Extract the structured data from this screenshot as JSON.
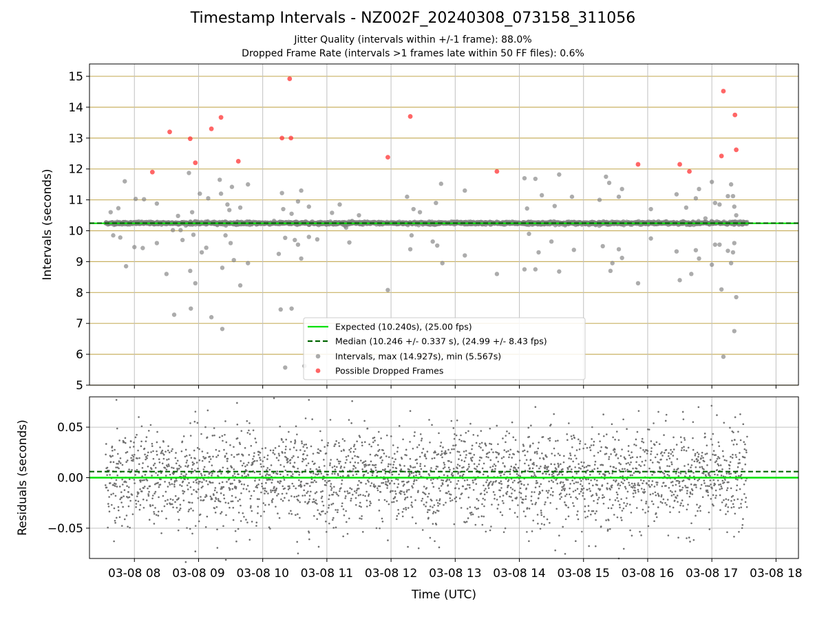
{
  "chart_data": [
    {
      "type": "scatter",
      "title": "Timestamp Intervals - NZ002F_20240308_073158_311056",
      "subtitle_lines": [
        "Jitter Quality (intervals within +/-1 frame): 88.0%",
        "Dropped Frame Rate (intervals >1 frames late within 50 FF files): 0.6%"
      ],
      "ylabel": "Intervals (seconds)",
      "ylim": [
        5,
        15.4
      ],
      "yticks": [
        5,
        6,
        7,
        8,
        9,
        10,
        11,
        12,
        13,
        14,
        15
      ],
      "xlim_hours": [
        7.3,
        18.35
      ],
      "grid": true,
      "legend_position": "lower center",
      "legend": [
        "Expected (10.240s), (25.00 fps)",
        "Median (10.246 +/- 0.337 s), (24.99 +/- 8.43 fps)",
        "Intervals, max (14.927s), min (5.567s)",
        "Possible Dropped Frames"
      ],
      "expected": 10.24,
      "median": 10.246,
      "colors": {
        "expected": "#00e000",
        "median": "#006400",
        "intervals": "#808080",
        "dropped": "#ff3333",
        "hgrid": "#c8b060",
        "vgrid": "#c0c0c0"
      },
      "time_range_hours": [
        7.55,
        17.55
      ],
      "dropped_points": [
        [
          8.28,
          11.9
        ],
        [
          8.55,
          13.2
        ],
        [
          8.87,
          12.98
        ],
        [
          8.95,
          12.2
        ],
        [
          9.2,
          13.3
        ],
        [
          9.35,
          13.67
        ],
        [
          9.62,
          12.25
        ],
        [
          10.3,
          13.0
        ],
        [
          10.42,
          14.92
        ],
        [
          10.44,
          13.0
        ],
        [
          11.95,
          12.38
        ],
        [
          12.3,
          13.7
        ],
        [
          13.65,
          11.92
        ],
        [
          15.85,
          12.15
        ],
        [
          16.5,
          12.15
        ],
        [
          16.65,
          11.92
        ],
        [
          17.15,
          12.42
        ],
        [
          17.18,
          14.52
        ],
        [
          17.36,
          13.75
        ],
        [
          17.38,
          12.62
        ]
      ],
      "outlier_points": [
        [
          7.63,
          10.6
        ],
        [
          7.67,
          9.85
        ],
        [
          7.75,
          10.73
        ],
        [
          7.78,
          9.78
        ],
        [
          7.85,
          11.6
        ],
        [
          7.87,
          8.85
        ],
        [
          8.0,
          9.47
        ],
        [
          8.02,
          11.03
        ],
        [
          8.13,
          9.44
        ],
        [
          8.15,
          11.02
        ],
        [
          8.35,
          10.88
        ],
        [
          8.35,
          9.6
        ],
        [
          8.5,
          8.6
        ],
        [
          8.62,
          7.28
        ],
        [
          8.68,
          10.48
        ],
        [
          8.72,
          10.02
        ],
        [
          8.75,
          9.7
        ],
        [
          8.85,
          11.87
        ],
        [
          8.87,
          8.7
        ],
        [
          8.88,
          7.48
        ],
        [
          8.9,
          10.6
        ],
        [
          8.92,
          9.87
        ],
        [
          8.95,
          8.3
        ],
        [
          9.02,
          11.2
        ],
        [
          9.05,
          9.3
        ],
        [
          9.12,
          9.45
        ],
        [
          9.15,
          11.05
        ],
        [
          9.2,
          7.2
        ],
        [
          9.33,
          11.65
        ],
        [
          9.35,
          11.2
        ],
        [
          9.37,
          8.8
        ],
        [
          9.37,
          6.82
        ],
        [
          9.42,
          9.85
        ],
        [
          9.45,
          10.85
        ],
        [
          9.48,
          10.67
        ],
        [
          9.5,
          9.6
        ],
        [
          9.52,
          11.42
        ],
        [
          9.55,
          9.05
        ],
        [
          9.65,
          10.75
        ],
        [
          9.65,
          8.23
        ],
        [
          9.77,
          11.5
        ],
        [
          9.77,
          8.95
        ],
        [
          10.25,
          9.25
        ],
        [
          10.28,
          7.45
        ],
        [
          10.3,
          11.22
        ],
        [
          10.32,
          10.7
        ],
        [
          10.35,
          9.77
        ],
        [
          10.45,
          10.55
        ],
        [
          10.45,
          7.48
        ],
        [
          10.5,
          9.7
        ],
        [
          10.55,
          10.95
        ],
        [
          10.55,
          9.55
        ],
        [
          10.6,
          11.3
        ],
        [
          10.6,
          9.1
        ],
        [
          10.72,
          9.8
        ],
        [
          10.85,
          9.72
        ],
        [
          11.2,
          10.85
        ],
        [
          11.3,
          10.1
        ],
        [
          11.35,
          9.62
        ],
        [
          11.5,
          10.5
        ],
        [
          11.95,
          8.08
        ],
        [
          12.25,
          11.1
        ],
        [
          12.3,
          9.4
        ],
        [
          12.32,
          9.85
        ],
        [
          12.35,
          10.7
        ],
        [
          12.45,
          10.6
        ],
        [
          12.65,
          9.65
        ],
        [
          12.7,
          10.9
        ],
        [
          12.72,
          9.52
        ],
        [
          12.78,
          11.52
        ],
        [
          12.8,
          8.95
        ],
        [
          13.15,
          11.3
        ],
        [
          13.15,
          9.2
        ],
        [
          13.65,
          8.6
        ],
        [
          14.08,
          11.7
        ],
        [
          14.08,
          8.75
        ],
        [
          14.12,
          10.72
        ],
        [
          14.15,
          9.9
        ],
        [
          14.25,
          11.68
        ],
        [
          14.25,
          8.75
        ],
        [
          14.3,
          9.3
        ],
        [
          14.35,
          11.15
        ],
        [
          14.5,
          9.65
        ],
        [
          14.55,
          10.8
        ],
        [
          14.62,
          11.82
        ],
        [
          14.62,
          8.68
        ],
        [
          14.82,
          11.1
        ],
        [
          14.85,
          9.38
        ],
        [
          15.25,
          11.0
        ],
        [
          15.3,
          9.5
        ],
        [
          15.35,
          11.75
        ],
        [
          15.4,
          11.55
        ],
        [
          15.42,
          8.7
        ],
        [
          15.45,
          8.95
        ],
        [
          15.55,
          11.1
        ],
        [
          15.55,
          9.4
        ],
        [
          15.6,
          11.35
        ],
        [
          15.6,
          9.12
        ],
        [
          15.85,
          8.3
        ],
        [
          16.05,
          10.7
        ],
        [
          16.05,
          9.75
        ],
        [
          16.45,
          11.18
        ],
        [
          16.45,
          9.33
        ],
        [
          16.5,
          8.4
        ],
        [
          16.6,
          10.75
        ],
        [
          16.68,
          8.6
        ],
        [
          16.75,
          11.05
        ],
        [
          16.75,
          9.37
        ],
        [
          16.8,
          11.35
        ],
        [
          16.8,
          9.1
        ],
        [
          16.9,
          10.4
        ],
        [
          17.0,
          11.58
        ],
        [
          17.0,
          8.9
        ],
        [
          17.05,
          10.9
        ],
        [
          17.05,
          9.55
        ],
        [
          17.12,
          10.85
        ],
        [
          17.12,
          9.55
        ],
        [
          17.15,
          8.1
        ],
        [
          17.18,
          5.92
        ],
        [
          17.25,
          11.12
        ],
        [
          17.25,
          9.35
        ],
        [
          17.3,
          11.5
        ],
        [
          17.3,
          8.95
        ],
        [
          17.33,
          11.12
        ],
        [
          17.33,
          9.3
        ],
        [
          17.35,
          10.78
        ],
        [
          17.35,
          9.6
        ],
        [
          17.38,
          10.5
        ],
        [
          17.38,
          7.85
        ],
        [
          17.35,
          6.75
        ],
        [
          10.35,
          5.57
        ],
        [
          10.65,
          5.62
        ],
        [
          8.6,
          10.02
        ],
        [
          10.72,
          10.78
        ],
        [
          11.08,
          10.58
        ]
      ],
      "residuals_panel": {
        "ylabel": "Residuals (seconds)",
        "xlabel": "Time (UTC)",
        "ylim": [
          -0.08,
          0.08
        ],
        "yticks": [
          -0.05,
          0.0,
          0.05
        ],
        "ytick_labels": [
          "−0.05",
          "0.00",
          "0.05"
        ],
        "expected_line": 0.0,
        "median_line": 0.006,
        "approx_point_count": 2800,
        "approx_residual_std": 0.024,
        "outlier_residuals": [
          [
            7.72,
            0.077
          ],
          [
            8.95,
            -0.073
          ],
          [
            10.55,
            -0.075
          ],
          [
            10.72,
            0.077
          ],
          [
            11.95,
            -0.062
          ],
          [
            12.75,
            -0.069
          ],
          [
            14.25,
            0.07
          ],
          [
            15.55,
            -0.08
          ],
          [
            12.3,
            0.066
          ],
          [
            9.6,
            0.074
          ]
        ]
      },
      "xtick_hours": [
        8,
        9,
        10,
        11,
        12,
        13,
        14,
        15,
        16,
        17,
        18
      ],
      "xtick_labels": [
        "03-08 08",
        "03-08 09",
        "03-08 10",
        "03-08 11",
        "03-08 12",
        "03-08 13",
        "03-08 14",
        "03-08 15",
        "03-08 16",
        "03-08 17",
        "03-08 18"
      ]
    }
  ]
}
